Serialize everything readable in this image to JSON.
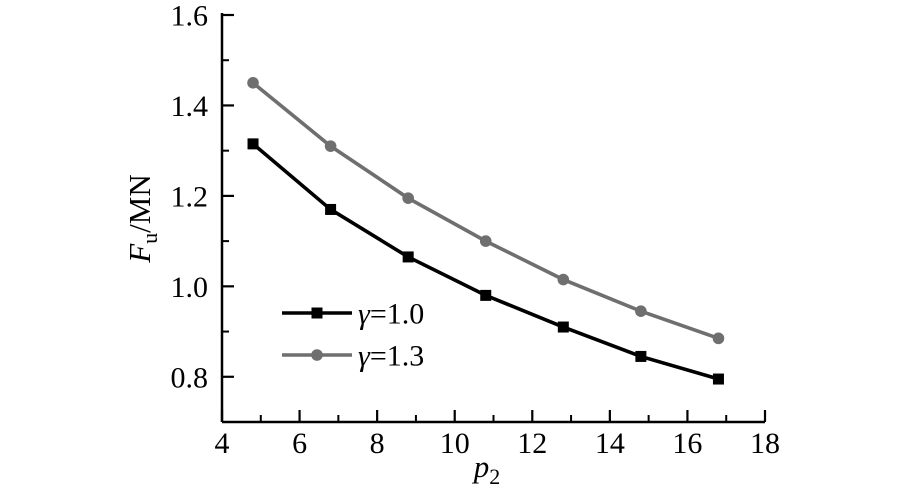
{
  "chart_data": {
    "type": "line",
    "title": "",
    "xlabel": {
      "main": "p",
      "sub": "2"
    },
    "ylabel": {
      "main": "F",
      "sub": "u",
      "rest": "/MN"
    },
    "x": [
      4.8,
      6.8,
      8.8,
      10.8,
      12.8,
      14.8,
      16.8
    ],
    "series": [
      {
        "name": "γ=1.0",
        "marker": "square",
        "color": "#000000",
        "values": [
          1.315,
          1.17,
          1.065,
          0.98,
          0.91,
          0.845,
          0.795
        ]
      },
      {
        "name": "γ=1.3",
        "marker": "circle",
        "color": "#6f6f6f",
        "values": [
          1.45,
          1.31,
          1.195,
          1.1,
          1.015,
          0.945,
          0.885
        ]
      }
    ],
    "xlim": [
      4,
      18
    ],
    "ylim": [
      0.7,
      1.6
    ],
    "x_major_ticks": [
      4,
      6,
      8,
      10,
      12,
      14,
      16,
      18
    ],
    "x_minor_ticks": [
      5,
      7,
      9,
      11,
      13,
      15,
      17
    ],
    "y_major_tick_labels": [
      "0.8",
      "1.0",
      "1.2",
      "1.4",
      "1.6"
    ],
    "y_minor_ticks": [
      0.9,
      1.1,
      1.3,
      1.5
    ],
    "grid": false,
    "legend_position": "inside-lower-left",
    "axis_color": "#000000",
    "background": "#ffffff"
  }
}
